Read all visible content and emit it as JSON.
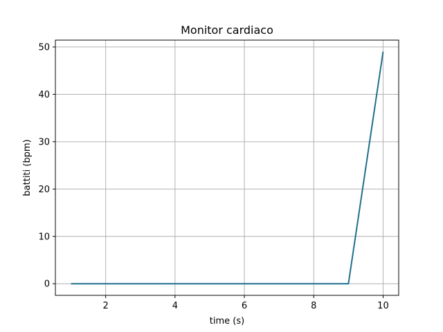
{
  "chart_data": {
    "type": "line",
    "title": "Monitor cardiaco",
    "xlabel": "time (s)",
    "ylabel": "battiti (bpm)",
    "xlim": [
      0.55,
      10.45
    ],
    "ylim": [
      -2.45,
      51.45
    ],
    "xticks": [
      2,
      4,
      6,
      8,
      10
    ],
    "yticks": [
      0,
      10,
      20,
      30,
      40,
      50
    ],
    "grid": true,
    "series": [
      {
        "color": "#1f6f8b",
        "x": [
          1,
          2,
          3,
          4,
          5,
          6,
          7,
          8,
          9,
          10
        ],
        "y": [
          0,
          0,
          0,
          0,
          0,
          0,
          0,
          0,
          0,
          49
        ]
      }
    ]
  }
}
